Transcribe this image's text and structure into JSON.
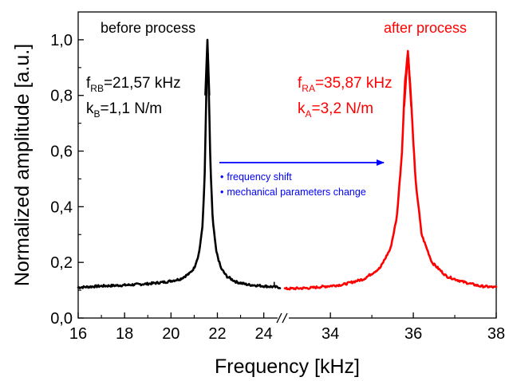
{
  "chart_data": {
    "type": "line",
    "xlabel": "Frequency [kHz]",
    "ylabel": "Normalized amplitude [a.u.]",
    "ylim": [
      0.0,
      1.1
    ],
    "y_ticks": [
      0.0,
      0.2,
      0.4,
      0.6,
      0.8,
      1.0
    ],
    "y_tick_labels": [
      "0,0",
      "0,2",
      "0,4",
      "0,6",
      "0,8",
      "1,0"
    ],
    "axis_break": "//",
    "panels": [
      {
        "xlim": [
          16,
          24.7
        ],
        "x_ticks": [
          16,
          18,
          20,
          22,
          24
        ],
        "x_tick_labels": [
          "16",
          "18",
          "20",
          "22",
          "24"
        ]
      },
      {
        "xlim": [
          32.9,
          38
        ],
        "x_ticks": [
          34,
          36,
          38
        ],
        "x_tick_labels": [
          "34",
          "36",
          "38"
        ]
      }
    ],
    "series": [
      {
        "color": "#000000",
        "panel": 0,
        "baseline": 0.11,
        "peak": {
          "x": 21.57,
          "y": 1.0
        },
        "x": [
          16.0,
          17.0,
          18.0,
          19.0,
          19.8,
          20.4,
          20.8,
          21.0,
          21.2,
          21.35,
          21.45,
          21.52,
          21.57,
          21.62,
          21.7,
          21.8,
          21.95,
          22.15,
          22.4,
          22.8,
          23.3,
          24.0,
          24.7
        ],
        "y": [
          0.11,
          0.115,
          0.118,
          0.123,
          0.13,
          0.14,
          0.16,
          0.18,
          0.23,
          0.32,
          0.5,
          0.8,
          1.0,
          0.85,
          0.55,
          0.35,
          0.24,
          0.18,
          0.15,
          0.13,
          0.12,
          0.115,
          0.11
        ]
      },
      {
        "color": "#ff0000",
        "panel": 1,
        "baseline": 0.11,
        "peak": {
          "x": 35.87,
          "y": 0.96
        },
        "x": [
          32.9,
          33.5,
          34.3,
          34.8,
          35.2,
          35.45,
          35.6,
          35.72,
          35.8,
          35.87,
          35.94,
          36.05,
          36.2,
          36.45,
          36.8,
          37.2,
          37.6,
          38.0
        ],
        "y": [
          0.105,
          0.108,
          0.12,
          0.14,
          0.18,
          0.25,
          0.36,
          0.58,
          0.85,
          0.96,
          0.8,
          0.5,
          0.3,
          0.2,
          0.15,
          0.13,
          0.115,
          0.11
        ]
      }
    ],
    "annotations": {
      "before_title": "before process",
      "after_title": "after process",
      "before_freq": {
        "prefix": "f",
        "sub": "RB",
        "value": "=21,57 kHz"
      },
      "before_k": {
        "prefix": "k",
        "sub": "B",
        "value": "=1,1 N/m"
      },
      "after_freq": {
        "prefix": "f",
        "sub": "RA",
        "value": "=35,87 kHz"
      },
      "after_k": {
        "prefix": "k",
        "sub": "A",
        "value": "=3,2 N/m"
      },
      "notes": [
        "frequency shift",
        "mechanical parameters change"
      ],
      "bullet": "•"
    },
    "colors": {
      "before": "#000000",
      "after": "#ff0000",
      "arrow": "#0000ff"
    }
  }
}
